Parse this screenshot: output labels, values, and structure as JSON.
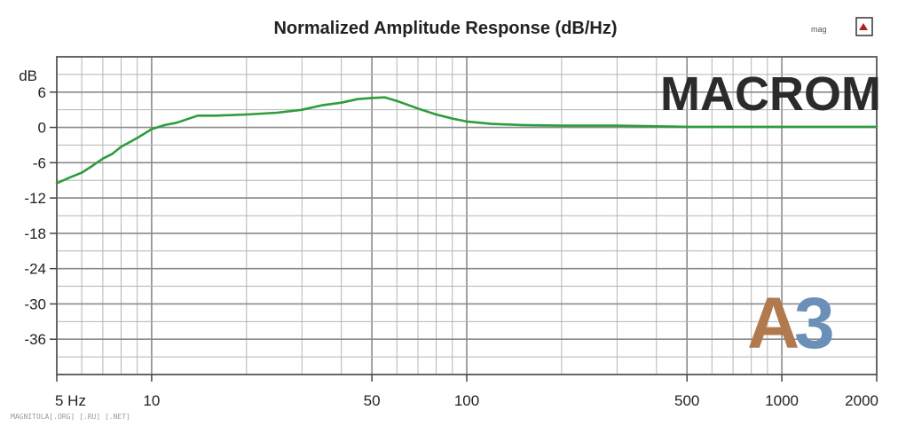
{
  "chart_data": {
    "type": "line",
    "title": "Normalized Amplitude Response (dB/Hz)",
    "xscale": "log",
    "xlim": [
      5,
      2000
    ],
    "ylim": [
      -42,
      12
    ],
    "grid": true,
    "yunit_label": "dB",
    "y_ticks": [
      6,
      0,
      -6,
      -12,
      -18,
      -24,
      -30,
      -36
    ],
    "y_tick_labels": [
      "6",
      "0",
      "-6",
      "-12",
      "-18",
      "-24",
      "-30",
      "-36"
    ],
    "x_ticks": [
      5,
      10,
      50,
      100,
      500,
      1000,
      2000
    ],
    "x_tick_labels": [
      "5 Hz",
      "10",
      "50",
      "100",
      "500",
      "1000",
      "2000"
    ],
    "series": [
      {
        "color": "#2e9c3c",
        "x": [
          5,
          5.5,
          6,
          6.5,
          7,
          7.5,
          8,
          9,
          10,
          11,
          12,
          14,
          16,
          20,
          25,
          30,
          35,
          40,
          45,
          50,
          55,
          60,
          70,
          80,
          90,
          100,
          120,
          150,
          200,
          300,
          500,
          1000,
          2000
        ],
        "y": [
          -9.5,
          -8.5,
          -7.7,
          -6.5,
          -5.3,
          -4.5,
          -3.3,
          -1.8,
          -0.3,
          0.4,
          0.8,
          2.0,
          2.0,
          2.2,
          2.5,
          3.0,
          3.8,
          4.2,
          4.8,
          5.0,
          5.1,
          4.5,
          3.2,
          2.2,
          1.5,
          1.0,
          0.6,
          0.4,
          0.3,
          0.3,
          0.1,
          0.1,
          0.1
        ]
      }
    ]
  },
  "branding": {
    "macrom_text": "MACROM",
    "a3_letter_a": "A",
    "a3_letter_3": "3",
    "footer_text": "MAGNITOLA[.ORG] [.RU] [.NET]",
    "logo_text": "mag"
  }
}
